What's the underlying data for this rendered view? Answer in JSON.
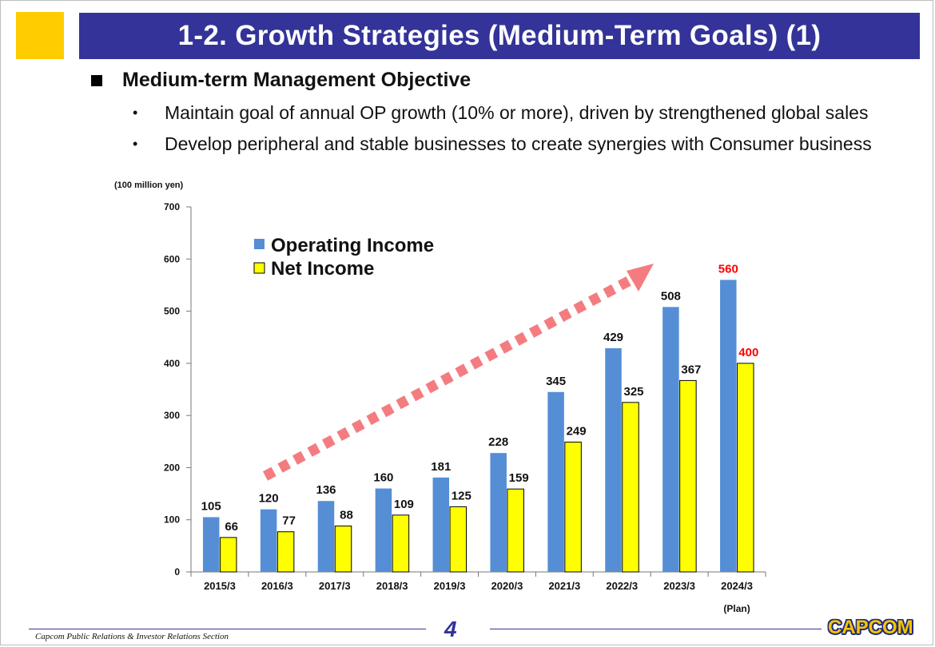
{
  "page": {
    "title": "1-2. Growth Strategies (Medium-Term Goals) (1)",
    "heading": "Medium-term Management Objective",
    "bullets": [
      "Maintain goal of annual OP growth (10% or more), driven by strengthened global sales",
      "Develop peripheral and stable businesses to create synergies with Consumer business"
    ],
    "footer_text": "Capcom Public Relations & Investor Relations Section",
    "page_number": "4",
    "logo_text": "CAPCOM",
    "colors": {
      "title_bar": "#333399",
      "corner_square": "#ffcc00",
      "operating_income": "#558ed5",
      "net_income": "#ffff00",
      "plan_label": "#ff0000",
      "growth_arrow": "#f47c80"
    }
  },
  "chart_data": {
    "type": "bar",
    "unit_label": "(100 million yen)",
    "categories": [
      "2015/3",
      "2016/3",
      "2017/3",
      "2018/3",
      "2019/3",
      "2020/3",
      "2021/3",
      "2022/3",
      "2023/3",
      "2024/3"
    ],
    "category_note": "(Plan)",
    "series": [
      {
        "name": "Operating Income",
        "values": [
          105,
          120,
          136,
          160,
          181,
          228,
          345,
          429,
          508,
          560
        ]
      },
      {
        "name": "Net Income",
        "values": [
          66,
          77,
          88,
          109,
          125,
          159,
          249,
          325,
          367,
          400
        ]
      }
    ],
    "ylim": [
      0,
      700
    ],
    "yticks": [
      0,
      100,
      200,
      300,
      400,
      500,
      600,
      700
    ],
    "legend": "top-left",
    "grid": false,
    "highlighted_category": "2024/3",
    "annotation": "dashed arrow indicating upward growth trend"
  }
}
